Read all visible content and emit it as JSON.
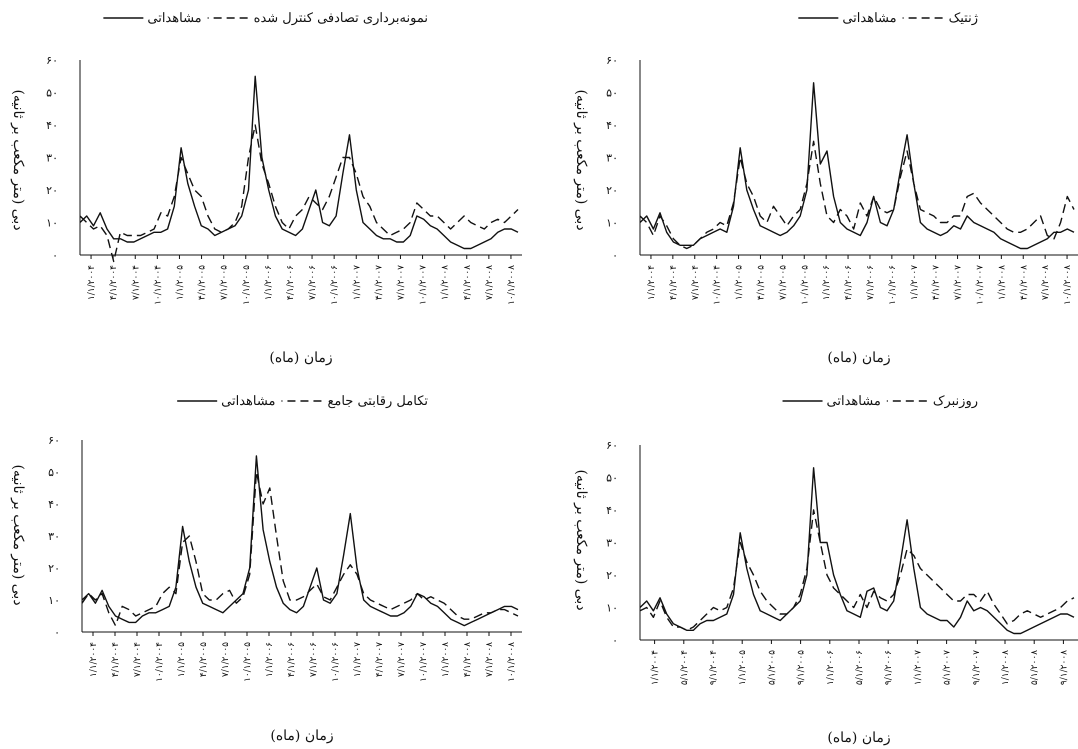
{
  "chart_data": [
    {
      "type": "line",
      "legend": {
        "observed": "مشاهداتی",
        "model": "نمونه‌برداری تصادفی کنترل شده"
      },
      "xlabel": "زمان (ماه)",
      "ylabel": "دبی (متر مکعب بر ثانیه)",
      "ylim": [
        0,
        60
      ],
      "yticks": [
        "۰",
        "۱۰",
        "۲۰",
        "۳۰",
        "۴۰",
        "۵۰",
        "۶۰"
      ],
      "x_tick_labels": [
        "۱/۱/۲۰۰۴",
        "۴/۱/۲۰۰۴",
        "۷/۱/۲۰۰۴",
        "۱۰/۱/۲۰۰۴",
        "۱/۱/۲۰۰۵",
        "۴/۱/۲۰۰۵",
        "۷/۱/۲۰۰۵",
        "۱۰/۱/۲۰۰۵",
        "۱/۱/۲۰۰۶",
        "۴/۱/۲۰۰۶",
        "۷/۱/۲۰۰۶",
        "۱۰/۱/۲۰۰۶",
        "۱/۱/۲۰۰۷",
        "۴/۱/۲۰۰۷",
        "۷/۱/۲۰۰۷",
        "۱۰/۱/۲۰۰۷",
        "۱/۱/۲۰۰۸",
        "۴/۱/۲۰۰۸",
        "۷/۱/۲۰۰۸",
        "۱۰/۱/۲۰۰۸"
      ],
      "series": [
        {
          "name": "مشاهداتی",
          "style": "solid",
          "values": [
            10,
            12,
            9,
            13,
            8,
            5,
            5,
            4,
            4,
            5,
            6,
            7,
            7,
            8,
            15,
            33,
            22,
            15,
            9,
            8,
            6,
            7,
            8,
            9,
            12,
            20,
            55,
            30,
            20,
            12,
            8,
            7,
            6,
            8,
            14,
            20,
            10,
            9,
            12,
            25,
            37,
            20,
            10,
            8,
            6,
            5,
            5,
            4,
            4,
            6,
            12,
            11,
            9,
            8,
            6,
            4,
            3,
            2,
            2,
            3,
            4,
            5,
            7,
            8,
            8,
            7
          ]
        },
        {
          "name": "نمونه‌برداری تصادفی کنترل شده",
          "style": "dashed",
          "values": [
            12,
            10,
            8,
            9,
            6,
            -2,
            7,
            6,
            6,
            6,
            7,
            8,
            13,
            12,
            18,
            30,
            25,
            20,
            18,
            12,
            8,
            7,
            8,
            10,
            15,
            30,
            40,
            28,
            22,
            15,
            10,
            8,
            12,
            14,
            18,
            16,
            14,
            18,
            24,
            30,
            30,
            25,
            18,
            15,
            10,
            8,
            6,
            7,
            8,
            10,
            16,
            14,
            12,
            12,
            10,
            8,
            10,
            12,
            10,
            9,
            8,
            10,
            11,
            10,
            12,
            14
          ]
        }
      ]
    },
    {
      "type": "line",
      "legend": {
        "observed": "مشاهداتی",
        "model": "ژنتیک"
      },
      "xlabel": "زمان (ماه)",
      "ylabel": "دبی (متر مکعب بر ثانیه)",
      "ylim": [
        0,
        60
      ],
      "yticks": [
        "۰",
        "۱۰",
        "۲۰",
        "۳۰",
        "۴۰",
        "۵۰",
        "۶۰"
      ],
      "x_tick_labels": [
        "۱/۱/۲۰۰۴",
        "۴/۱/۲۰۰۴",
        "۷/۱/۲۰۰۴",
        "۱۰/۱/۲۰۰۴",
        "۱/۱/۲۰۰۵",
        "۴/۱/۲۰۰۵",
        "۷/۱/۲۰۰۵",
        "۱۰/۱/۲۰۰۵",
        "۱/۱/۲۰۰۶",
        "۴/۱/۲۰۰۶",
        "۷/۱/۲۰۰۶",
        "۱۰/۱/۲۰۰۶",
        "۱/۱/۲۰۰۷",
        "۴/۱/۲۰۰۷",
        "۷/۱/۲۰۰۷",
        "۱۰/۱/۲۰۰۷",
        "۱/۱/۲۰۰۸",
        "۴/۱/۲۰۰۸",
        "۷/۱/۲۰۰۸",
        "۱۰/۱/۲۰۰۸"
      ],
      "series": [
        {
          "name": "مشاهداتی",
          "style": "solid",
          "values": [
            10,
            12,
            8,
            13,
            7,
            4,
            3,
            3,
            3,
            5,
            6,
            7,
            8,
            7,
            15,
            33,
            20,
            14,
            9,
            8,
            7,
            6,
            7,
            9,
            12,
            20,
            53,
            28,
            32,
            18,
            10,
            8,
            7,
            6,
            10,
            18,
            10,
            9,
            14,
            26,
            37,
            22,
            10,
            8,
            7,
            6,
            7,
            9,
            8,
            12,
            10,
            9,
            8,
            7,
            5,
            4,
            3,
            2,
            2,
            3,
            4,
            5,
            7,
            7,
            8,
            7
          ]
        },
        {
          "name": "ژنتیک",
          "style": "dashed",
          "values": [
            12,
            10,
            6,
            12,
            9,
            5,
            3,
            2,
            3,
            5,
            7,
            8,
            10,
            9,
            16,
            30,
            22,
            18,
            12,
            10,
            15,
            12,
            9,
            12,
            14,
            22,
            35,
            22,
            12,
            10,
            14,
            12,
            8,
            16,
            12,
            18,
            14,
            13,
            14,
            24,
            32,
            22,
            14,
            13,
            12,
            10,
            10,
            12,
            12,
            18,
            19,
            16,
            14,
            12,
            10,
            8,
            7,
            7,
            8,
            10,
            12,
            6,
            5,
            10,
            18,
            14
          ]
        }
      ]
    },
    {
      "type": "line",
      "legend": {
        "observed": "مشاهداتی",
        "model": "تکامل رقابتی جامع"
      },
      "xlabel": "زمان (ماه)",
      "ylabel": "دبی (متر مکعب بر ثانیه)",
      "ylim": [
        0,
        60
      ],
      "yticks": [
        "۰",
        "۱۰",
        "۲۰",
        "۳۰",
        "۴۰",
        "۵۰",
        "۶۰"
      ],
      "x_tick_labels": [
        "۱/۱/۲۰۰۴",
        "۴/۱/۲۰۰۴",
        "۷/۱/۲۰۰۴",
        "۱۰/۱/۲۰۰۴",
        "۱/۱/۲۰۰۵",
        "۴/۱/۲۰۰۵",
        "۷/۱/۲۰۰۵",
        "۱۰/۱/۲۰۰۵",
        "۱/۱/۲۰۰۶",
        "۴/۱/۲۰۰۶",
        "۷/۱/۲۰۰۶",
        "۱۰/۱/۲۰۰۶",
        "۱/۱/۲۰۰۷",
        "۴/۱/۲۰۰۷",
        "۷/۱/۲۰۰۷",
        "۱۰/۱/۲۰۰۷",
        "۱/۱/۲۰۰۸",
        "۴/۱/۲۰۰۸",
        "۷/۱/۲۰۰۸",
        "۱۰/۱/۲۰۰۸"
      ],
      "series": [
        {
          "name": "مشاهداتی",
          "style": "solid",
          "values": [
            10,
            12,
            9,
            13,
            8,
            5,
            4,
            3,
            3,
            5,
            6,
            6,
            7,
            8,
            14,
            33,
            22,
            14,
            9,
            8,
            7,
            6,
            8,
            10,
            12,
            20,
            55,
            32,
            22,
            14,
            9,
            7,
            6,
            8,
            14,
            20,
            10,
            9,
            12,
            24,
            37,
            20,
            10,
            8,
            7,
            6,
            5,
            5,
            6,
            8,
            12,
            11,
            9,
            8,
            6,
            4,
            3,
            2,
            3,
            4,
            5,
            6,
            7,
            8,
            8,
            7
          ]
        },
        {
          "name": "تکامل رقابتی جامع",
          "style": "dashed",
          "values": [
            9,
            12,
            10,
            12,
            6,
            2,
            8,
            7,
            5,
            6,
            7,
            8,
            12,
            14,
            12,
            28,
            30,
            22,
            12,
            10,
            10,
            12,
            13,
            9,
            11,
            18,
            50,
            40,
            45,
            30,
            16,
            10,
            10,
            11,
            13,
            15,
            11,
            10,
            14,
            18,
            21,
            18,
            12,
            10,
            9,
            8,
            7,
            8,
            9,
            10,
            12,
            10,
            11,
            10,
            9,
            7,
            5,
            4,
            4,
            5,
            6,
            6,
            7,
            7,
            6,
            5
          ]
        }
      ]
    },
    {
      "type": "line",
      "legend": {
        "observed": "مشاهداتی",
        "model": "روزنبرک"
      },
      "xlabel": "زمان (ماه)",
      "ylabel": "دبی (متر مکعب بر ثانیه)",
      "ylim": [
        0,
        60
      ],
      "yticks": [
        "۰",
        "۱۰",
        "۲۰",
        "۳۰",
        "۴۰",
        "۵۰",
        "۶۰"
      ],
      "x_tick_labels": [
        "۱/۱/۲۰۰۴",
        "۵/۱/۲۰۰۴",
        "۹/۱/۲۰۰۴",
        "۱/۱/۲۰۰۵",
        "۵/۱/۲۰۰۵",
        "۹/۱/۲۰۰۵",
        "۱/۱/۲۰۰۶",
        "۵/۱/۲۰۰۶",
        "۹/۱/۲۰۰۶",
        "۱/۱/۲۰۰۷",
        "۵/۱/۲۰۰۷",
        "۹/۱/۲۰۰۷",
        "۱/۱/۲۰۰۸",
        "۵/۱/۲۰۰۸",
        "۹/۱/۲۰۰۸"
      ],
      "series": [
        {
          "name": "مشاهداتی",
          "style": "solid",
          "values": [
            10,
            12,
            9,
            13,
            8,
            5,
            4,
            3,
            3,
            5,
            6,
            6,
            7,
            8,
            14,
            33,
            22,
            14,
            9,
            8,
            7,
            6,
            8,
            10,
            12,
            20,
            53,
            30,
            30,
            20,
            14,
            9,
            8,
            7,
            15,
            16,
            10,
            9,
            12,
            24,
            37,
            22,
            10,
            8,
            7,
            6,
            6,
            4,
            7,
            12,
            9,
            10,
            9,
            7,
            5,
            3,
            2,
            2,
            3,
            4,
            5,
            6,
            7,
            8,
            8,
            7
          ]
        },
        {
          "name": "روزنبرک",
          "style": "dashed",
          "values": [
            9,
            10,
            7,
            12,
            7,
            4,
            4,
            3,
            4,
            6,
            8,
            10,
            9,
            10,
            16,
            30,
            24,
            20,
            15,
            12,
            10,
            8,
            8,
            10,
            14,
            22,
            40,
            30,
            20,
            16,
            14,
            12,
            10,
            14,
            10,
            15,
            13,
            12,
            14,
            20,
            28,
            26,
            22,
            20,
            18,
            16,
            14,
            12,
            12,
            14,
            14,
            12,
            15,
            11,
            8,
            5,
            6,
            8,
            9,
            8,
            7,
            8,
            9,
            10,
            12,
            13
          ]
        }
      ]
    }
  ]
}
